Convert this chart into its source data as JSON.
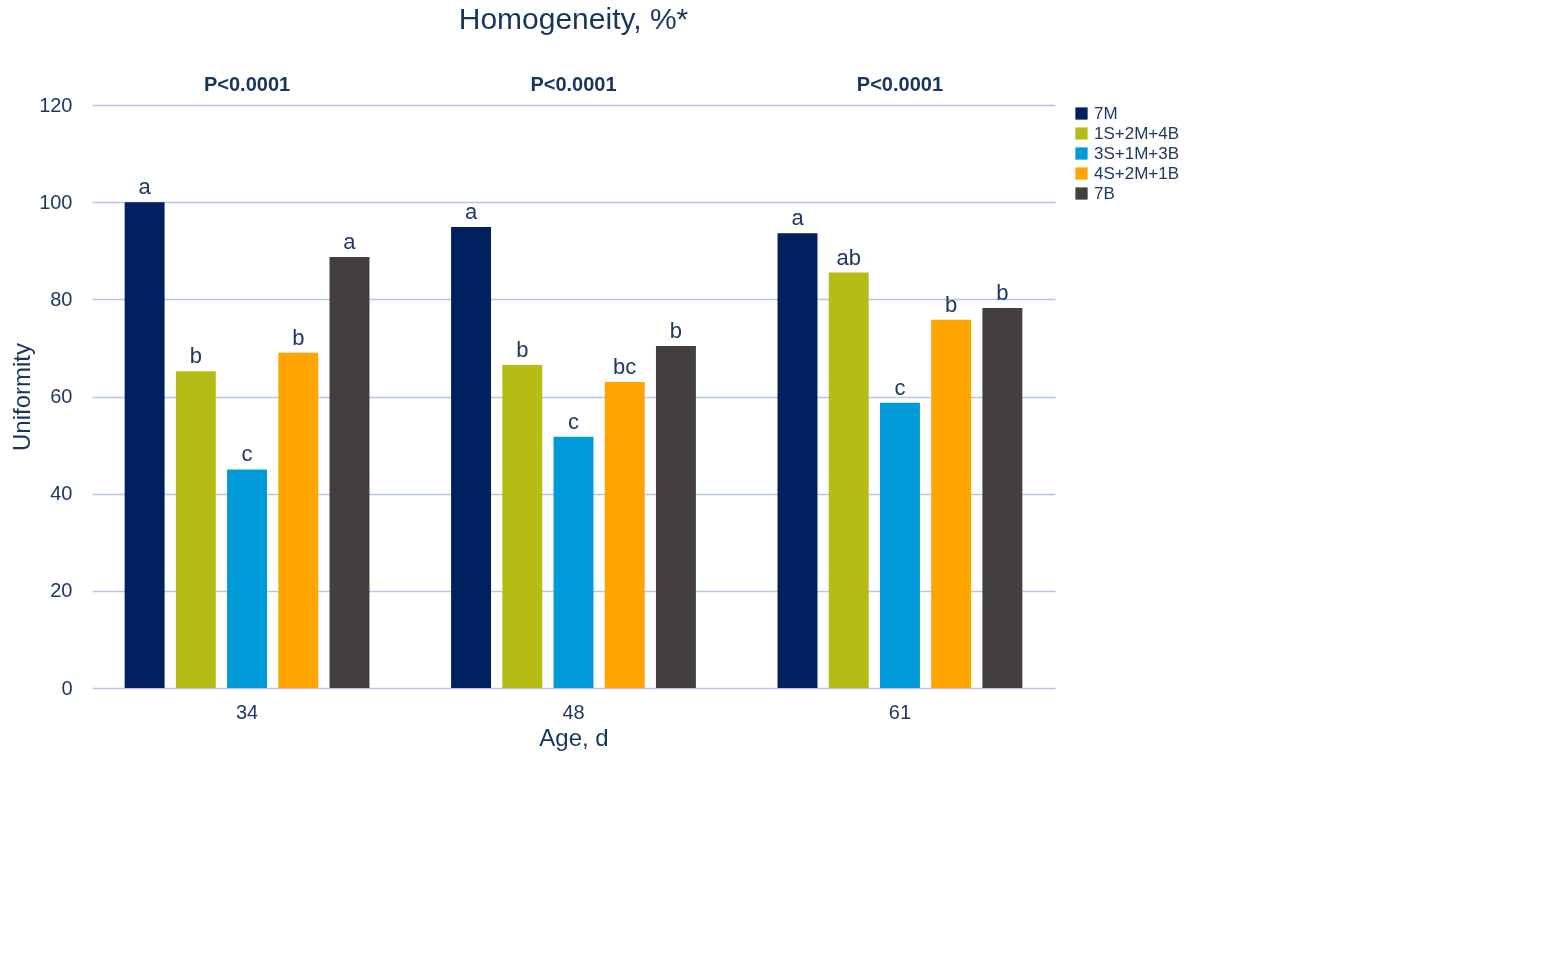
{
  "chart_data": {
    "type": "bar",
    "title": "Homogeneity, %*",
    "xlabel": "Age, d",
    "ylabel": "Uniformity",
    "categories": [
      "34",
      "48",
      "61"
    ],
    "series": [
      {
        "name": "7M",
        "color": "#002060",
        "values": [
          100,
          94.9,
          93.6
        ],
        "value_labels": [
          "a",
          "a",
          "a"
        ]
      },
      {
        "name": "1S+2M+4B",
        "color": "#b5bd14",
        "values": [
          65.2,
          66.5,
          85.5
        ],
        "value_labels": [
          "b",
          "b",
          "ab"
        ]
      },
      {
        "name": "3S+1M+3B",
        "color": "#009ad8",
        "values": [
          45.0,
          51.7,
          58.7
        ],
        "value_labels": [
          "c",
          "c",
          "c"
        ]
      },
      {
        "name": "4S+2M+1B",
        "color": "#ffa400",
        "values": [
          69.0,
          63.0,
          75.8
        ],
        "value_labels": [
          "b",
          "bc",
          "b"
        ]
      },
      {
        "name": "7B",
        "color": "#433f3e",
        "values": [
          88.7,
          70.4,
          78.2
        ],
        "value_labels": [
          "a",
          "b",
          "b"
        ]
      }
    ],
    "ylim": [
      0,
      120
    ],
    "yticks": [
      0,
      20,
      40,
      60,
      80,
      100,
      120
    ],
    "grid": "y",
    "legend": "right",
    "annotations": [
      "P<0.0001",
      "P<0.0001",
      "P<0.0001"
    ]
  }
}
